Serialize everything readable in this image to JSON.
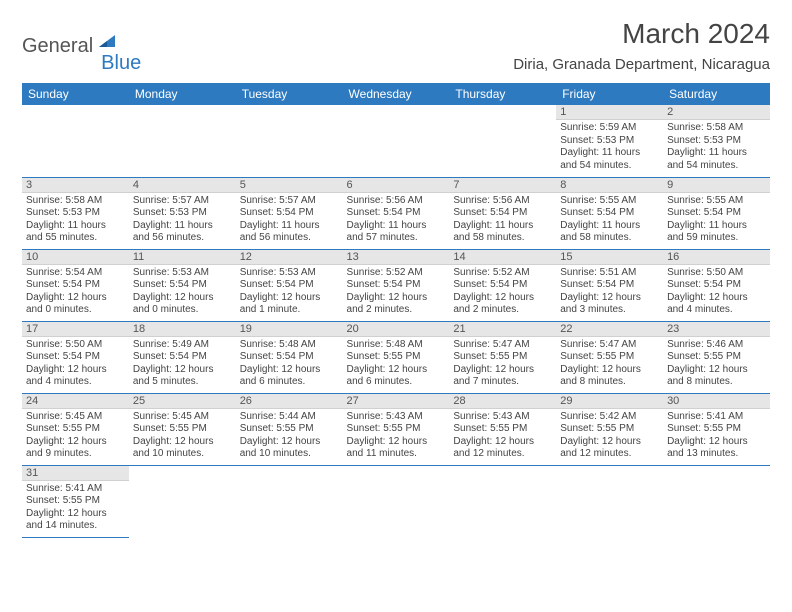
{
  "logo": {
    "part1": "General",
    "part2": "Blue"
  },
  "title": "March 2024",
  "location": "Diria, Granada Department, Nicaragua",
  "colors": {
    "header_bg": "#2e7ac0",
    "header_text": "#ffffff",
    "daynum_bg": "#e6e6e6",
    "cell_border": "#2e7ac0",
    "body_text": "#444444"
  },
  "dayNames": [
    "Sunday",
    "Monday",
    "Tuesday",
    "Wednesday",
    "Thursday",
    "Friday",
    "Saturday"
  ],
  "weeks": [
    [
      null,
      null,
      null,
      null,
      null,
      {
        "n": "1",
        "sr": "5:59 AM",
        "ss": "5:53 PM",
        "dl": "11 hours and 54 minutes."
      },
      {
        "n": "2",
        "sr": "5:58 AM",
        "ss": "5:53 PM",
        "dl": "11 hours and 54 minutes."
      }
    ],
    [
      {
        "n": "3",
        "sr": "5:58 AM",
        "ss": "5:53 PM",
        "dl": "11 hours and 55 minutes."
      },
      {
        "n": "4",
        "sr": "5:57 AM",
        "ss": "5:53 PM",
        "dl": "11 hours and 56 minutes."
      },
      {
        "n": "5",
        "sr": "5:57 AM",
        "ss": "5:54 PM",
        "dl": "11 hours and 56 minutes."
      },
      {
        "n": "6",
        "sr": "5:56 AM",
        "ss": "5:54 PM",
        "dl": "11 hours and 57 minutes."
      },
      {
        "n": "7",
        "sr": "5:56 AM",
        "ss": "5:54 PM",
        "dl": "11 hours and 58 minutes."
      },
      {
        "n": "8",
        "sr": "5:55 AM",
        "ss": "5:54 PM",
        "dl": "11 hours and 58 minutes."
      },
      {
        "n": "9",
        "sr": "5:55 AM",
        "ss": "5:54 PM",
        "dl": "11 hours and 59 minutes."
      }
    ],
    [
      {
        "n": "10",
        "sr": "5:54 AM",
        "ss": "5:54 PM",
        "dl": "12 hours and 0 minutes."
      },
      {
        "n": "11",
        "sr": "5:53 AM",
        "ss": "5:54 PM",
        "dl": "12 hours and 0 minutes."
      },
      {
        "n": "12",
        "sr": "5:53 AM",
        "ss": "5:54 PM",
        "dl": "12 hours and 1 minute."
      },
      {
        "n": "13",
        "sr": "5:52 AM",
        "ss": "5:54 PM",
        "dl": "12 hours and 2 minutes."
      },
      {
        "n": "14",
        "sr": "5:52 AM",
        "ss": "5:54 PM",
        "dl": "12 hours and 2 minutes."
      },
      {
        "n": "15",
        "sr": "5:51 AM",
        "ss": "5:54 PM",
        "dl": "12 hours and 3 minutes."
      },
      {
        "n": "16",
        "sr": "5:50 AM",
        "ss": "5:54 PM",
        "dl": "12 hours and 4 minutes."
      }
    ],
    [
      {
        "n": "17",
        "sr": "5:50 AM",
        "ss": "5:54 PM",
        "dl": "12 hours and 4 minutes."
      },
      {
        "n": "18",
        "sr": "5:49 AM",
        "ss": "5:54 PM",
        "dl": "12 hours and 5 minutes."
      },
      {
        "n": "19",
        "sr": "5:48 AM",
        "ss": "5:54 PM",
        "dl": "12 hours and 6 minutes."
      },
      {
        "n": "20",
        "sr": "5:48 AM",
        "ss": "5:55 PM",
        "dl": "12 hours and 6 minutes."
      },
      {
        "n": "21",
        "sr": "5:47 AM",
        "ss": "5:55 PM",
        "dl": "12 hours and 7 minutes."
      },
      {
        "n": "22",
        "sr": "5:47 AM",
        "ss": "5:55 PM",
        "dl": "12 hours and 8 minutes."
      },
      {
        "n": "23",
        "sr": "5:46 AM",
        "ss": "5:55 PM",
        "dl": "12 hours and 8 minutes."
      }
    ],
    [
      {
        "n": "24",
        "sr": "5:45 AM",
        "ss": "5:55 PM",
        "dl": "12 hours and 9 minutes."
      },
      {
        "n": "25",
        "sr": "5:45 AM",
        "ss": "5:55 PM",
        "dl": "12 hours and 10 minutes."
      },
      {
        "n": "26",
        "sr": "5:44 AM",
        "ss": "5:55 PM",
        "dl": "12 hours and 10 minutes."
      },
      {
        "n": "27",
        "sr": "5:43 AM",
        "ss": "5:55 PM",
        "dl": "12 hours and 11 minutes."
      },
      {
        "n": "28",
        "sr": "5:43 AM",
        "ss": "5:55 PM",
        "dl": "12 hours and 12 minutes."
      },
      {
        "n": "29",
        "sr": "5:42 AM",
        "ss": "5:55 PM",
        "dl": "12 hours and 12 minutes."
      },
      {
        "n": "30",
        "sr": "5:41 AM",
        "ss": "5:55 PM",
        "dl": "12 hours and 13 minutes."
      }
    ],
    [
      {
        "n": "31",
        "sr": "5:41 AM",
        "ss": "5:55 PM",
        "dl": "12 hours and 14 minutes."
      },
      null,
      null,
      null,
      null,
      null,
      null
    ]
  ],
  "labels": {
    "sunrise": "Sunrise: ",
    "sunset": "Sunset: ",
    "daylight": "Daylight: "
  }
}
